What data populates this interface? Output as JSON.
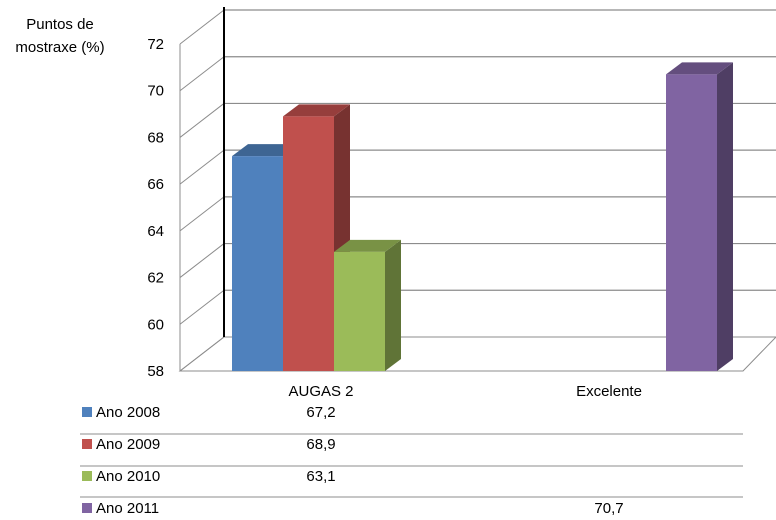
{
  "chart_data": {
    "type": "bar",
    "title": "",
    "ylabel": "Puntos de mostraxe (%)",
    "ylabel_lines": [
      "Puntos de",
      "mostraxe (%)"
    ],
    "xlabel": "",
    "categories": [
      "AUGAS 2",
      "Excelente"
    ],
    "ylim": [
      58,
      72
    ],
    "ytick_labels": [
      "58",
      "60",
      "62",
      "64",
      "66",
      "68",
      "70",
      "72"
    ],
    "grid": true,
    "legend": "data-table-below",
    "series": [
      {
        "name": "Ano 2008",
        "values": [
          67.2,
          null
        ],
        "labels": [
          "67,2",
          ""
        ],
        "color": "#4F81BD"
      },
      {
        "name": "Ano 2009",
        "values": [
          68.9,
          null
        ],
        "labels": [
          "68,9",
          ""
        ],
        "color": "#C0504D"
      },
      {
        "name": "Ano 2010",
        "values": [
          63.1,
          null
        ],
        "labels": [
          "63,1",
          ""
        ],
        "color": "#9BBB59"
      },
      {
        "name": "Ano 2011",
        "values": [
          null,
          70.7
        ],
        "labels": [
          "",
          "70,7"
        ],
        "color": "#8064A2"
      }
    ]
  }
}
